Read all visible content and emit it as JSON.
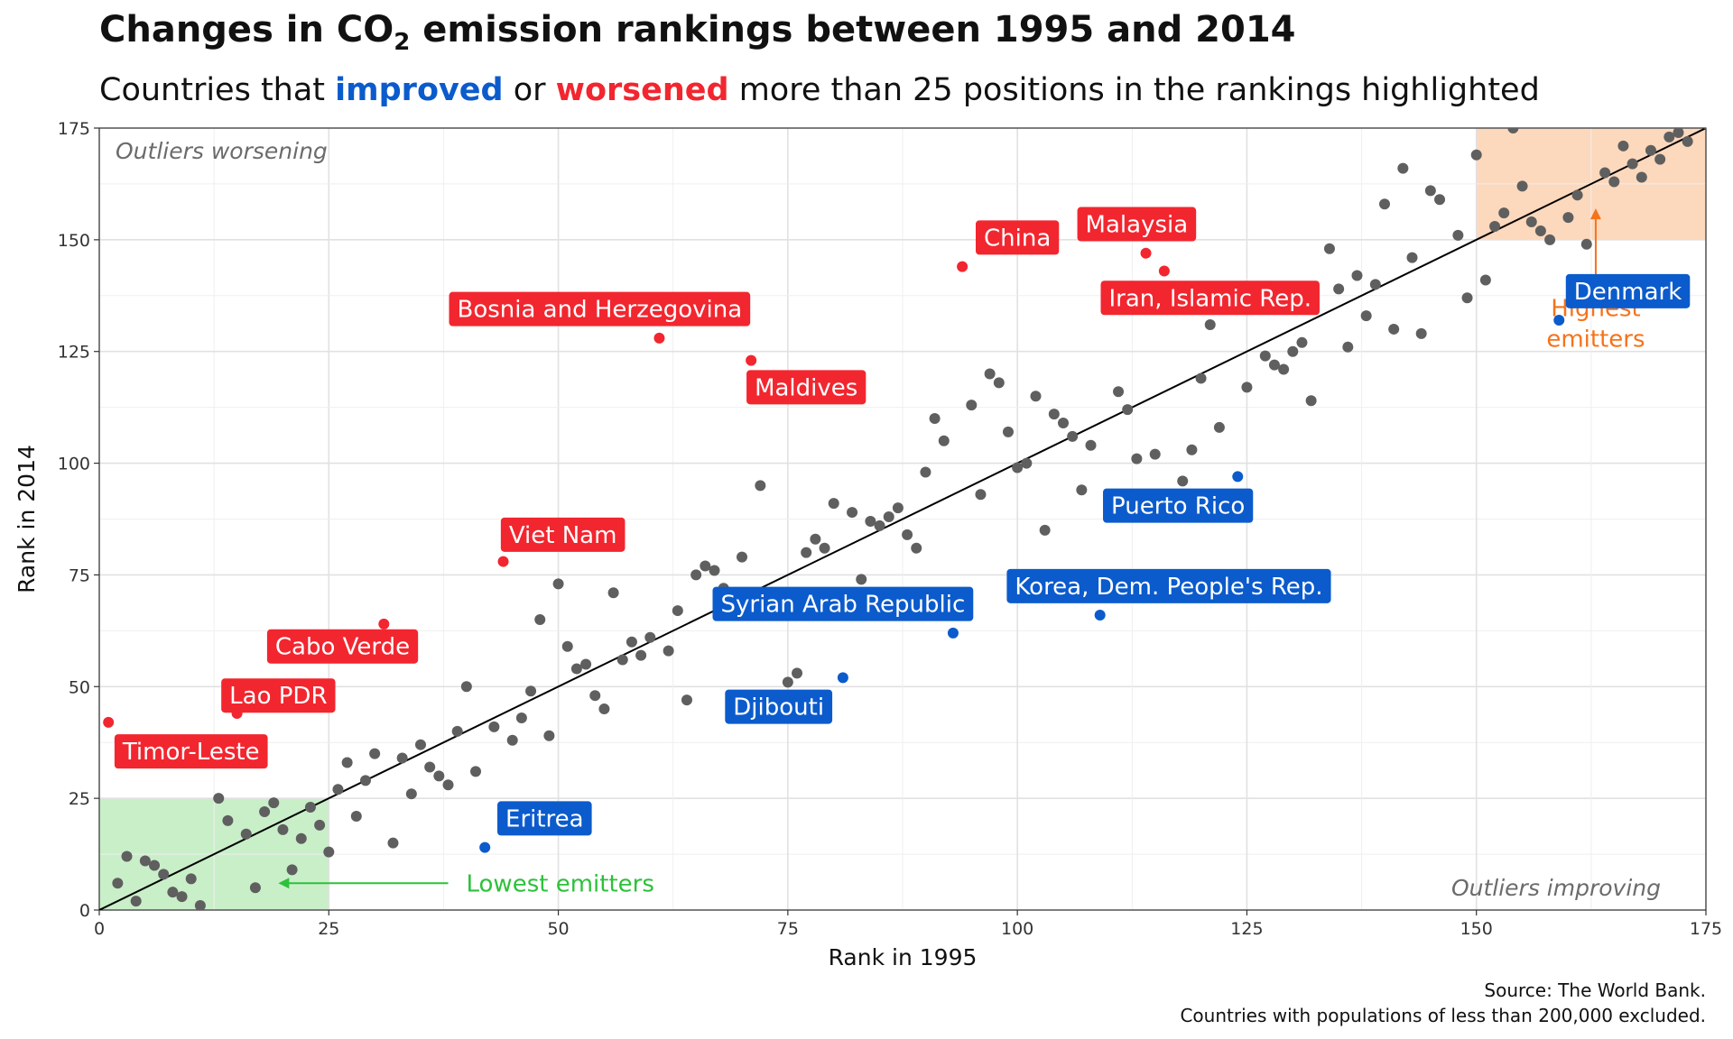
{
  "title_pre": "Changes in CO",
  "title_sub": "2",
  "title_post": " emission rankings between 1995 and 2014",
  "subtitle": {
    "pre": "Countries that ",
    "improved": "improved",
    "mid": " or ",
    "worsened": "worsened",
    "post": " more than 25 positions in the rankings highlighted"
  },
  "caption": {
    "line1": "Source: The World Bank.",
    "line2": "Countries with populations of less than 200,000 excluded."
  },
  "colors": {
    "improved": "#0b5bcc",
    "worsened": "#f2262f",
    "neutral": "#5f5f5f",
    "low_zone": "#c9efc9",
    "low_text": "#2cc13a",
    "high_zone": "#fcd8bd",
    "high_text": "#f5731a"
  },
  "chart_data": {
    "type": "scatter",
    "xlabel": "Rank in 1995",
    "ylabel": "Rank in 2014",
    "xlim": [
      0,
      175
    ],
    "ylim": [
      0,
      175
    ],
    "xticks": [
      0,
      25,
      50,
      75,
      100,
      125,
      150,
      175
    ],
    "yticks": [
      0,
      25,
      50,
      75,
      100,
      125,
      150,
      175
    ],
    "grid": true,
    "reference_line": {
      "from": [
        0,
        0
      ],
      "to": [
        175,
        175
      ]
    },
    "zones": [
      {
        "name": "lowest",
        "x": [
          0,
          25
        ],
        "y": [
          0,
          25
        ]
      },
      {
        "name": "highest",
        "x": [
          150,
          175
        ],
        "y": [
          150,
          175
        ]
      }
    ],
    "corner_labels": {
      "worsening": "Outliers worsening",
      "improving": "Outliers improving"
    },
    "zone_annotations": [
      {
        "text": "Lowest emitters",
        "arrow_from": [
          38,
          6
        ],
        "arrow_to": [
          19.5,
          6
        ]
      },
      {
        "text": "Highest\nemitters",
        "arrow_from": [
          163,
          140
        ],
        "arrow_to": [
          163,
          157
        ]
      }
    ],
    "points": [
      [
        2,
        6
      ],
      [
        3,
        12
      ],
      [
        4,
        2
      ],
      [
        5,
        11
      ],
      [
        6,
        10
      ],
      [
        7,
        8
      ],
      [
        8,
        4
      ],
      [
        9,
        3
      ],
      [
        10,
        7
      ],
      [
        11,
        1
      ],
      [
        13,
        25
      ],
      [
        14,
        20
      ],
      [
        16,
        17
      ],
      [
        17,
        5
      ],
      [
        18,
        22
      ],
      [
        19,
        24
      ],
      [
        20,
        18
      ],
      [
        21,
        9
      ],
      [
        22,
        16
      ],
      [
        23,
        23
      ],
      [
        24,
        19
      ],
      [
        25,
        13
      ],
      [
        26,
        27
      ],
      [
        27,
        33
      ],
      [
        28,
        21
      ],
      [
        29,
        29
      ],
      [
        30,
        35
      ],
      [
        32,
        15
      ],
      [
        33,
        34
      ],
      [
        34,
        26
      ],
      [
        35,
        37
      ],
      [
        36,
        32
      ],
      [
        37,
        30
      ],
      [
        38,
        28
      ],
      [
        39,
        40
      ],
      [
        40,
        50
      ],
      [
        41,
        31
      ],
      [
        43,
        41
      ],
      [
        45,
        38
      ],
      [
        46,
        43
      ],
      [
        47,
        49
      ],
      [
        48,
        65
      ],
      [
        49,
        39
      ],
      [
        50,
        73
      ],
      [
        51,
        59
      ],
      [
        52,
        54
      ],
      [
        53,
        55
      ],
      [
        54,
        48
      ],
      [
        55,
        45
      ],
      [
        56,
        71
      ],
      [
        57,
        56
      ],
      [
        58,
        60
      ],
      [
        59,
        57
      ],
      [
        60,
        61
      ],
      [
        62,
        58
      ],
      [
        63,
        67
      ],
      [
        64,
        47
      ],
      [
        65,
        75
      ],
      [
        66,
        77
      ],
      [
        67,
        76
      ],
      [
        68,
        72
      ],
      [
        70,
        79
      ],
      [
        72,
        95
      ],
      [
        75,
        51
      ],
      [
        76,
        53
      ],
      [
        77,
        80
      ],
      [
        78,
        83
      ],
      [
        79,
        81
      ],
      [
        80,
        91
      ],
      [
        82,
        89
      ],
      [
        83,
        74
      ],
      [
        84,
        87
      ],
      [
        85,
        86
      ],
      [
        86,
        88
      ],
      [
        87,
        90
      ],
      [
        88,
        84
      ],
      [
        89,
        81
      ],
      [
        90,
        98
      ],
      [
        91,
        110
      ],
      [
        92,
        105
      ],
      [
        95,
        113
      ],
      [
        96,
        93
      ],
      [
        97,
        120
      ],
      [
        98,
        118
      ],
      [
        99,
        107
      ],
      [
        100,
        99
      ],
      [
        101,
        100
      ],
      [
        102,
        115
      ],
      [
        103,
        85
      ],
      [
        104,
        111
      ],
      [
        105,
        109
      ],
      [
        106,
        106
      ],
      [
        107,
        94
      ],
      [
        108,
        104
      ],
      [
        111,
        116
      ],
      [
        112,
        112
      ],
      [
        113,
        101
      ],
      [
        115,
        102
      ],
      [
        118,
        96
      ],
      [
        119,
        103
      ],
      [
        120,
        119
      ],
      [
        121,
        131
      ],
      [
        122,
        108
      ],
      [
        125,
        117
      ],
      [
        127,
        124
      ],
      [
        128,
        122
      ],
      [
        129,
        121
      ],
      [
        130,
        125
      ],
      [
        131,
        127
      ],
      [
        132,
        114
      ],
      [
        134,
        148
      ],
      [
        135,
        139
      ],
      [
        136,
        126
      ],
      [
        137,
        142
      ],
      [
        138,
        133
      ],
      [
        139,
        140
      ],
      [
        140,
        158
      ],
      [
        141,
        130
      ],
      [
        142,
        166
      ],
      [
        143,
        146
      ],
      [
        144,
        129
      ],
      [
        145,
        161
      ],
      [
        146,
        159
      ],
      [
        148,
        151
      ],
      [
        149,
        137
      ],
      [
        150,
        169
      ],
      [
        151,
        141
      ],
      [
        152,
        153
      ],
      [
        153,
        156
      ],
      [
        154,
        175
      ],
      [
        155,
        162
      ],
      [
        156,
        154
      ],
      [
        157,
        152
      ],
      [
        158,
        150
      ],
      [
        160,
        155
      ],
      [
        161,
        160
      ],
      [
        162,
        149
      ],
      [
        164,
        165
      ],
      [
        165,
        163
      ],
      [
        166,
        171
      ],
      [
        167,
        167
      ],
      [
        168,
        164
      ],
      [
        169,
        170
      ],
      [
        170,
        168
      ],
      [
        171,
        173
      ],
      [
        172,
        174
      ],
      [
        173,
        172
      ],
      [
        175,
        176
      ]
    ],
    "highlighted": [
      {
        "label": "Timor-Leste",
        "x": 1,
        "y": 42,
        "group": "worsened",
        "lx": 10,
        "ly": 35.5
      },
      {
        "label": "Lao PDR",
        "x": 15,
        "y": 44,
        "group": "worsened",
        "lx": 19.5,
        "ly": 48
      },
      {
        "label": "Cabo Verde",
        "x": 31,
        "y": 64,
        "group": "worsened",
        "lx": 26.5,
        "ly": 59
      },
      {
        "label": "Viet Nam",
        "x": 44,
        "y": 78,
        "group": "worsened",
        "lx": 50.5,
        "ly": 84
      },
      {
        "label": "Bosnia and Herzegovina",
        "x": 61,
        "y": 128,
        "group": "worsened",
        "lx": 54.5,
        "ly": 134.5
      },
      {
        "label": "Maldives",
        "x": 71,
        "y": 123,
        "group": "worsened",
        "lx": 77,
        "ly": 117
      },
      {
        "label": "China",
        "x": 94,
        "y": 144,
        "group": "worsened",
        "lx": 100,
        "ly": 150.5
      },
      {
        "label": "Malaysia",
        "x": 114,
        "y": 147,
        "group": "worsened",
        "lx": 113,
        "ly": 153.5
      },
      {
        "label": "Iran, Islamic Rep.",
        "x": 116,
        "y": 143,
        "group": "worsened",
        "lx": 121,
        "ly": 137
      },
      {
        "label": "Eritrea",
        "x": 42,
        "y": 14,
        "group": "improved",
        "lx": 48.5,
        "ly": 20.5
      },
      {
        "label": "Djibouti",
        "x": 81,
        "y": 52,
        "group": "improved",
        "lx": 74,
        "ly": 45.5
      },
      {
        "label": "Syrian Arab Republic",
        "x": 93,
        "y": 62,
        "group": "improved",
        "lx": 81,
        "ly": 68.5
      },
      {
        "label": "Korea, Dem. People's Rep.",
        "x": 109,
        "y": 66,
        "group": "improved",
        "lx": 116.5,
        "ly": 72.5
      },
      {
        "label": "Puerto Rico",
        "x": 124,
        "y": 97,
        "group": "improved",
        "lx": 117.5,
        "ly": 90.5
      },
      {
        "label": "Denmark",
        "x": 159,
        "y": 132,
        "group": "improved",
        "lx": 166.5,
        "ly": 138.5
      }
    ]
  }
}
